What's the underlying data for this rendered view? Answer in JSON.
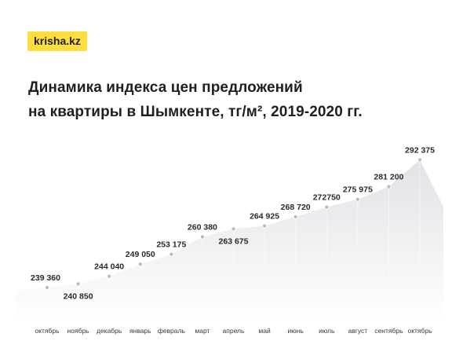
{
  "brand": "krisha.kz",
  "title_lines": [
    "Динамика индекса цен предложений",
    "на квартиры в Шымкенте, тг/м², 2019-2020 гг."
  ],
  "chart_data": {
    "type": "area",
    "title": "Динамика индекса цен предложений на квартиры в Шымкенте, тг/м², 2019-2020 гг.",
    "categories": [
      "октябрь",
      "ноябрь",
      "декабрь",
      "январь",
      "февраль",
      "март",
      "апрель",
      "май",
      "июнь",
      "июль",
      "август",
      "сентябрь",
      "октябрь"
    ],
    "values": [
      239360,
      240850,
      244040,
      249050,
      253175,
      260380,
      263675,
      264925,
      268720,
      272750,
      275975,
      281200,
      292375
    ],
    "value_labels": [
      "239 360",
      "240 850",
      "244 040",
      "249 050",
      "253 175",
      "260 380",
      "263 675",
      "264 925",
      "268 720",
      "272750",
      "275 975",
      "281 200",
      "292 375"
    ],
    "label_position": [
      "above",
      "below",
      "above",
      "above",
      "above",
      "above",
      "below",
      "above",
      "above",
      "above",
      "above",
      "above",
      "above"
    ],
    "ylim": [
      225000,
      300000
    ],
    "grid": false,
    "colors": {
      "area_top": "#e4e4e8",
      "area_bottom": "#ffffff",
      "point": "#b9b9c0"
    }
  }
}
